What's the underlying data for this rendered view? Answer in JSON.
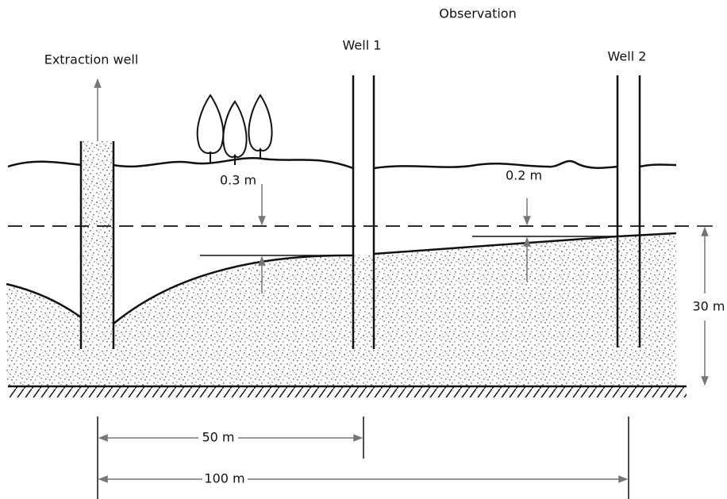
{
  "header": {
    "title": "Observation"
  },
  "wells": [
    {
      "label": "Extraction well"
    },
    {
      "label": "Well 1"
    },
    {
      "label": "Well 2"
    }
  ],
  "measurements": {
    "drawdown_well1": "0.3 m",
    "drawdown_well2": "0.2 m",
    "aquifer_thickness": "30 m",
    "distance_well1": "50 m",
    "distance_well2": "100 m"
  }
}
